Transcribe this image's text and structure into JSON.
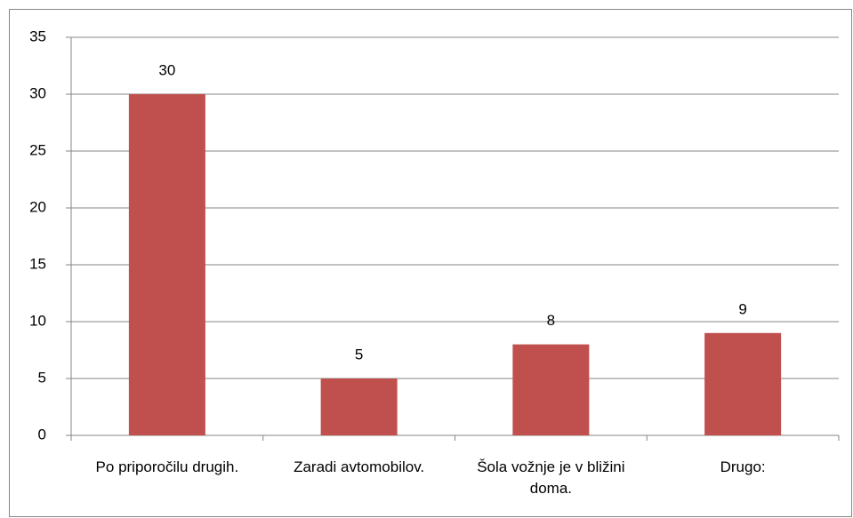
{
  "chart_data": {
    "type": "bar",
    "categories": [
      "Po priporočilu drugih.",
      "Zaradi avtomobilov.",
      "Šola vožnje je v bližini doma.",
      "Drugo:"
    ],
    "values": [
      30,
      5,
      8,
      9
    ],
    "color": "#c0504d",
    "ylim": [
      0,
      35
    ],
    "yticks": [
      0,
      5,
      10,
      15,
      20,
      25,
      30,
      35
    ],
    "grid": true
  }
}
